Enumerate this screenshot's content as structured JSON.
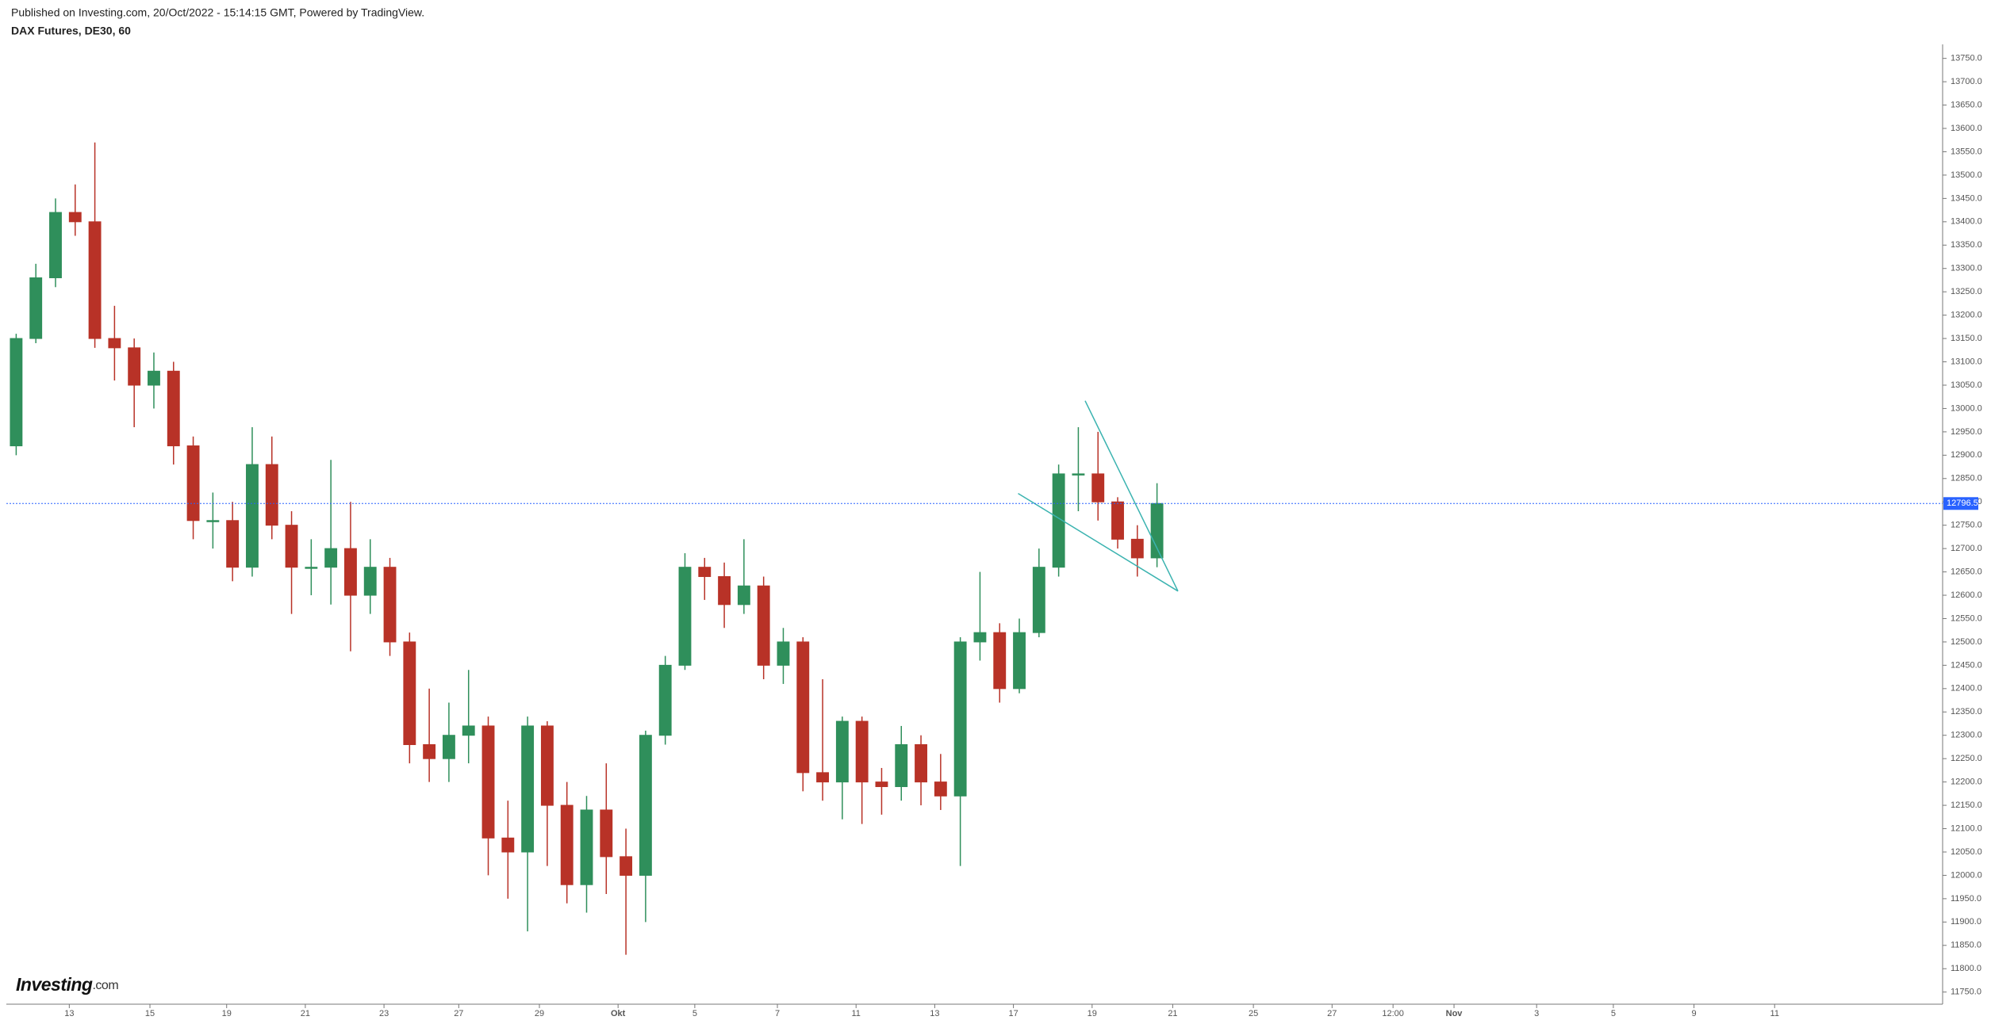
{
  "chart_data": {
    "type": "candlestick",
    "published": "Published on Investing.com, 20/Oct/2022 - 15:14:15 GMT, Powered by TradingView.",
    "title": "DAX Futures, DE30, 60",
    "logo": "Investing",
    "logo_suffix": ".com",
    "up_color": "#2f8f5b",
    "down_color": "#b83227",
    "last_price_color": "#2962ff",
    "open": [
      12920,
      13150,
      13280,
      13420,
      13400,
      13150,
      13130,
      13050,
      13080,
      12920,
      12760,
      12760,
      12660,
      12880,
      12750,
      12660,
      12660,
      12700,
      12600,
      12660,
      12500,
      12280,
      12250,
      12300,
      12320,
      12080,
      12050,
      12320,
      12150,
      11980,
      12140,
      12040,
      12000,
      12300,
      12450,
      12660,
      12640,
      12580,
      12620,
      12450,
      12500,
      12220,
      12200,
      12330,
      12200,
      12190,
      12280,
      12200,
      12170,
      12500,
      12520,
      12400,
      12520,
      12660,
      12860,
      12860,
      12800,
      12720,
      12680
    ],
    "high": [
      13160,
      13310,
      13450,
      13480,
      13570,
      13220,
      13150,
      13120,
      13100,
      12940,
      12820,
      12800,
      12960,
      12940,
      12780,
      12720,
      12890,
      12800,
      12720,
      12680,
      12520,
      12400,
      12370,
      12440,
      12340,
      12160,
      12340,
      12330,
      12200,
      12170,
      12240,
      12100,
      12310,
      12470,
      12690,
      12680,
      12670,
      12720,
      12640,
      12530,
      12510,
      12420,
      12340,
      12340,
      12230,
      12320,
      12300,
      12260,
      12510,
      12650,
      12540,
      12550,
      12700,
      12880,
      12960,
      12950,
      12810,
      12750,
      12840
    ],
    "low": [
      12900,
      13140,
      13260,
      13370,
      13130,
      13060,
      12960,
      13000,
      12880,
      12720,
      12700,
      12630,
      12640,
      12720,
      12560,
      12600,
      12580,
      12480,
      12560,
      12470,
      12240,
      12200,
      12200,
      12240,
      12000,
      11950,
      11880,
      12020,
      11940,
      11920,
      11960,
      11830,
      11900,
      12280,
      12440,
      12590,
      12530,
      12560,
      12420,
      12410,
      12180,
      12160,
      12120,
      12110,
      12130,
      12160,
      12150,
      12140,
      12020,
      12460,
      12370,
      12390,
      12510,
      12640,
      12780,
      12760,
      12700,
      12640,
      12660
    ],
    "close": [
      13150,
      13280,
      13420,
      13400,
      13150,
      13130,
      13050,
      13080,
      12920,
      12760,
      12760,
      12660,
      12880,
      12750,
      12660,
      12660,
      12700,
      12600,
      12660,
      12500,
      12280,
      12250,
      12300,
      12320,
      12080,
      12050,
      12320,
      12150,
      11980,
      12140,
      12040,
      12000,
      12300,
      12450,
      12660,
      12640,
      12580,
      12620,
      12450,
      12500,
      12220,
      12200,
      12330,
      12200,
      12190,
      12280,
      12200,
      12170,
      12500,
      12520,
      12400,
      12520,
      12660,
      12860,
      12860,
      12800,
      12720,
      12680,
      12796.5
    ],
    "ylim": [
      11724,
      13780
    ],
    "yticks": [
      {
        "value": 11750,
        "label": "11750.0"
      },
      {
        "value": 11800,
        "label": "11800.0"
      },
      {
        "value": 11850,
        "label": "11850.0"
      },
      {
        "value": 11900,
        "label": "11900.0"
      },
      {
        "value": 11950,
        "label": "11950.0"
      },
      {
        "value": 12000,
        "label": "12000.0"
      },
      {
        "value": 12050,
        "label": "12050.0"
      },
      {
        "value": 12100,
        "label": "12100.0"
      },
      {
        "value": 12150,
        "label": "12150.0"
      },
      {
        "value": 12200,
        "label": "12200.0"
      },
      {
        "value": 12250,
        "label": "12250.0"
      },
      {
        "value": 12300,
        "label": "12300.0"
      },
      {
        "value": 12350,
        "label": "12350.0"
      },
      {
        "value": 12400,
        "label": "12400.0"
      },
      {
        "value": 12450,
        "label": "12450.0"
      },
      {
        "value": 12500,
        "label": "12500.0"
      },
      {
        "value": 12550,
        "label": "12550.0"
      },
      {
        "value": 12600,
        "label": "12600.0"
      },
      {
        "value": 12650,
        "label": "12650.0"
      },
      {
        "value": 12700,
        "label": "12700.0"
      },
      {
        "value": 12750,
        "label": "12750.0"
      },
      {
        "value": 12800,
        "label": "12800.0"
      },
      {
        "value": 12850,
        "label": "12850.0"
      },
      {
        "value": 12900,
        "label": "12900.0"
      },
      {
        "value": 12950,
        "label": "12950.0"
      },
      {
        "value": 13000,
        "label": "13000.0"
      },
      {
        "value": 13050,
        "label": "13050.0"
      },
      {
        "value": 13100,
        "label": "13100.0"
      },
      {
        "value": 13150,
        "label": "13150.0"
      },
      {
        "value": 13200,
        "label": "13200.0"
      },
      {
        "value": 13250,
        "label": "13250.0"
      },
      {
        "value": 13300,
        "label": "13300.0"
      },
      {
        "value": 13350,
        "label": "13350.0"
      },
      {
        "value": 13400,
        "label": "13400.0"
      },
      {
        "value": 13450,
        "label": "13450.0"
      },
      {
        "value": 13500,
        "label": "13500.0"
      },
      {
        "value": 13550,
        "label": "13550.0"
      },
      {
        "value": 13600,
        "label": "13600.0"
      },
      {
        "value": 13650,
        "label": "13650.0"
      },
      {
        "value": 13700,
        "label": "13700.0"
      },
      {
        "value": 13750,
        "label": "13750.0"
      }
    ],
    "xlim": [
      0,
      98.4
    ],
    "xticks": [
      {
        "value": 3.2,
        "label": "13"
      },
      {
        "value": 7.3,
        "label": "15"
      },
      {
        "value": 11.2,
        "label": "19"
      },
      {
        "value": 15.2,
        "label": "21"
      },
      {
        "value": 19.2,
        "label": "23"
      },
      {
        "value": 23.0,
        "label": "27"
      },
      {
        "value": 27.1,
        "label": "29"
      },
      {
        "value": 31.1,
        "label": "Okt"
      },
      {
        "value": 35.0,
        "label": "5"
      },
      {
        "value": 39.2,
        "label": "7"
      },
      {
        "value": 43.2,
        "label": "11"
      },
      {
        "value": 47.2,
        "label": "13"
      },
      {
        "value": 51.2,
        "label": "17"
      },
      {
        "value": 55.2,
        "label": "19"
      },
      {
        "value": 59.3,
        "label": "21"
      },
      {
        "value": 63.4,
        "label": "25"
      },
      {
        "value": 67.4,
        "label": "27"
      },
      {
        "value": 70.5,
        "label": "12:00"
      },
      {
        "value": 73.6,
        "label": "Nov"
      },
      {
        "value": 77.8,
        "label": "3"
      },
      {
        "value": 81.7,
        "label": "5"
      },
      {
        "value": 85.8,
        "label": "9"
      },
      {
        "value": 89.9,
        "label": "11"
      }
    ]
  }
}
